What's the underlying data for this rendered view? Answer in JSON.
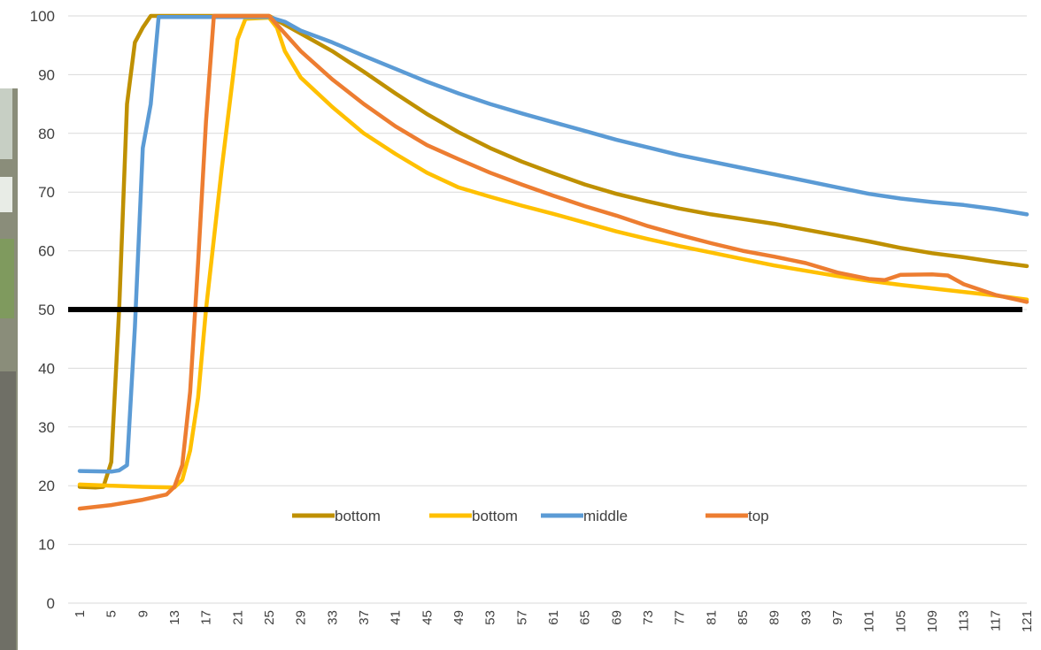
{
  "chart_data": {
    "type": "line",
    "title": "",
    "xlabel": "",
    "ylabel": "",
    "ylim": [
      0,
      100
    ],
    "y_ticks": [
      0,
      10,
      20,
      30,
      40,
      50,
      60,
      70,
      80,
      90,
      100
    ],
    "x_range": [
      1,
      121
    ],
    "x_tick_labels": [
      "1",
      "5",
      "9",
      "13",
      "17",
      "21",
      "25",
      "29",
      "33",
      "37",
      "41",
      "45",
      "49",
      "53",
      "57",
      "61",
      "65",
      "69",
      "73",
      "77",
      "81",
      "85",
      "89",
      "93",
      "97",
      "101",
      "105",
      "109",
      "113",
      "117",
      "121"
    ],
    "grid": "horizontal",
    "legend_position": "bottom-center inside plot",
    "reference_line": {
      "y": 50,
      "color": "#000000"
    },
    "series": [
      {
        "name": "bottom",
        "color": "#BF9000",
        "points": [
          [
            1,
            19.8
          ],
          [
            3,
            19.7
          ],
          [
            4,
            19.8
          ],
          [
            5,
            24
          ],
          [
            6,
            50
          ],
          [
            7,
            85
          ],
          [
            8,
            95.5
          ],
          [
            9,
            98
          ],
          [
            10,
            100
          ],
          [
            25,
            100
          ],
          [
            29,
            97
          ],
          [
            33,
            94
          ],
          [
            37,
            90.5
          ],
          [
            41,
            86.8
          ],
          [
            45,
            83.3
          ],
          [
            49,
            80.2
          ],
          [
            53,
            77.5
          ],
          [
            57,
            75.2
          ],
          [
            61,
            73.2
          ],
          [
            65,
            71.3
          ],
          [
            69,
            69.7
          ],
          [
            73,
            68.4
          ],
          [
            77,
            67.2
          ],
          [
            81,
            66.2
          ],
          [
            85,
            65.4
          ],
          [
            89,
            64.6
          ],
          [
            93,
            63.6
          ],
          [
            97,
            62.6
          ],
          [
            101,
            61.6
          ],
          [
            105,
            60.5
          ],
          [
            109,
            59.6
          ],
          [
            113,
            58.9
          ],
          [
            117,
            58.1
          ],
          [
            121,
            57.4
          ]
        ]
      },
      {
        "name": "bottom",
        "color": "#FFC000",
        "points": [
          [
            1,
            20.2
          ],
          [
            5,
            20
          ],
          [
            9,
            19.8
          ],
          [
            13,
            19.7
          ],
          [
            14,
            21
          ],
          [
            15,
            26
          ],
          [
            16,
            35
          ],
          [
            17,
            50
          ],
          [
            19,
            74
          ],
          [
            21,
            96
          ],
          [
            22,
            99.5
          ],
          [
            25,
            99.7
          ],
          [
            26,
            98
          ],
          [
            27,
            94
          ],
          [
            29,
            89.5
          ],
          [
            33,
            84.5
          ],
          [
            37,
            80
          ],
          [
            41,
            76.5
          ],
          [
            45,
            73.3
          ],
          [
            49,
            70.8
          ],
          [
            53,
            69.2
          ],
          [
            57,
            67.7
          ],
          [
            61,
            66.3
          ],
          [
            65,
            64.8
          ],
          [
            69,
            63.3
          ],
          [
            73,
            62
          ],
          [
            77,
            60.8
          ],
          [
            81,
            59.7
          ],
          [
            85,
            58.6
          ],
          [
            89,
            57.5
          ],
          [
            93,
            56.6
          ],
          [
            97,
            55.7
          ],
          [
            101,
            54.9
          ],
          [
            105,
            54.2
          ],
          [
            109,
            53.6
          ],
          [
            113,
            53
          ],
          [
            117,
            52.4
          ],
          [
            121,
            51.7
          ]
        ]
      },
      {
        "name": "middle",
        "color": "#5B9BD5",
        "points": [
          [
            1,
            22.5
          ],
          [
            5,
            22.4
          ],
          [
            6,
            22.6
          ],
          [
            7,
            23.5
          ],
          [
            8,
            47
          ],
          [
            9,
            77.5
          ],
          [
            10,
            85
          ],
          [
            11,
            99.8
          ],
          [
            25,
            99.8
          ],
          [
            27,
            99
          ],
          [
            29,
            97.5
          ],
          [
            33,
            95.5
          ],
          [
            37,
            93.2
          ],
          [
            41,
            91
          ],
          [
            45,
            88.8
          ],
          [
            49,
            86.8
          ],
          [
            53,
            85
          ],
          [
            57,
            83.4
          ],
          [
            61,
            81.9
          ],
          [
            65,
            80.4
          ],
          [
            69,
            78.9
          ],
          [
            73,
            77.6
          ],
          [
            77,
            76.3
          ],
          [
            81,
            75.2
          ],
          [
            85,
            74.1
          ],
          [
            89,
            73
          ],
          [
            93,
            71.9
          ],
          [
            97,
            70.8
          ],
          [
            101,
            69.7
          ],
          [
            105,
            68.9
          ],
          [
            109,
            68.3
          ],
          [
            113,
            67.8
          ],
          [
            117,
            67.1
          ],
          [
            121,
            66.2
          ]
        ]
      },
      {
        "name": "top",
        "color": "#ED7D31",
        "points": [
          [
            1,
            16.1
          ],
          [
            5,
            16.7
          ],
          [
            9,
            17.6
          ],
          [
            12,
            18.5
          ],
          [
            13,
            19.8
          ],
          [
            14,
            23.5
          ],
          [
            15,
            36
          ],
          [
            16,
            58
          ],
          [
            17,
            82
          ],
          [
            18,
            100
          ],
          [
            25,
            100
          ],
          [
            26,
            98.5
          ],
          [
            29,
            94
          ],
          [
            33,
            89.2
          ],
          [
            37,
            85
          ],
          [
            41,
            81.2
          ],
          [
            45,
            78
          ],
          [
            49,
            75.6
          ],
          [
            53,
            73.3
          ],
          [
            57,
            71.3
          ],
          [
            61,
            69.4
          ],
          [
            65,
            67.6
          ],
          [
            69,
            66
          ],
          [
            73,
            64.2
          ],
          [
            77,
            62.7
          ],
          [
            81,
            61.3
          ],
          [
            85,
            60
          ],
          [
            89,
            59
          ],
          [
            93,
            57.9
          ],
          [
            97,
            56.3
          ],
          [
            101,
            55.2
          ],
          [
            103,
            55
          ],
          [
            105,
            55.9
          ],
          [
            109,
            56
          ],
          [
            111,
            55.8
          ],
          [
            113,
            54.3
          ],
          [
            117,
            52.5
          ],
          [
            121,
            51.3
          ]
        ]
      }
    ]
  }
}
